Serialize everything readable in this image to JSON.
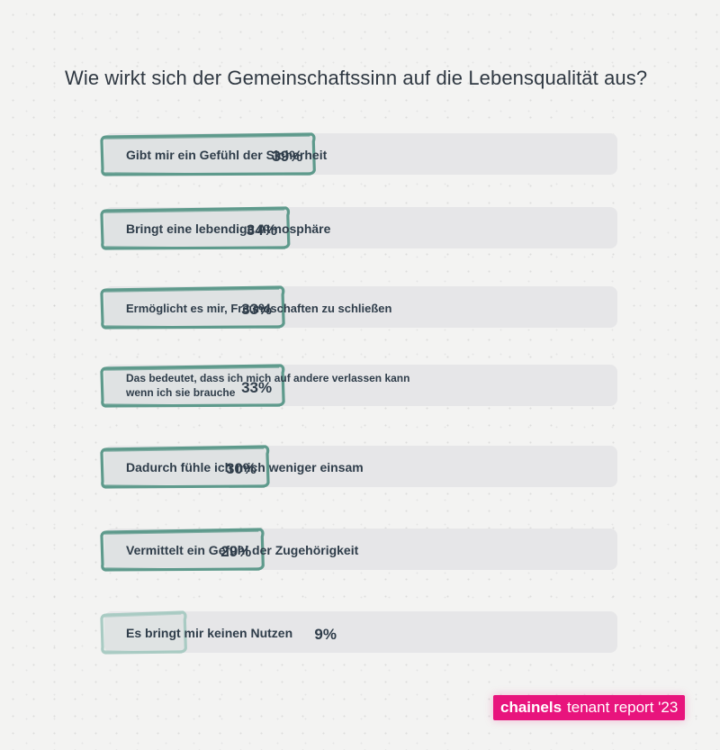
{
  "title": "Wie wirkt sich der Gemeinschaftssinn auf die Lebensqualität aus?",
  "brand": {
    "name": "chainels",
    "tagline": "tenant report '23",
    "color": "#e8147d"
  },
  "colors": {
    "track": "#e6e6e8",
    "outline": "#5e9a8c",
    "outline_light": "#a9cbc3",
    "text": "#2f3d4a"
  },
  "chart_data": {
    "type": "bar",
    "orientation": "horizontal",
    "title": "Wie wirkt sich der Gemeinschaftssinn auf die Lebensqualität aus?",
    "unit": "%",
    "xlim": [
      0,
      100
    ],
    "categories": [
      [
        "Gibt mir ein Gefühl der Sicherheit"
      ],
      [
        "Bringt eine lebendige Atmosphäre"
      ],
      [
        "Ermöglicht es mir, Freundschaften zu schließen"
      ],
      [
        "Das bedeutet, dass ich mich auf andere verlassen kann",
        "wenn ich sie brauche"
      ],
      [
        "Dadurch fühle ich mich weniger einsam"
      ],
      [
        "Vermittelt ein Gefühl der Zugehörigkeit"
      ],
      [
        "Es bringt mir keinen Nutzen"
      ]
    ],
    "values": [
      39,
      34,
      33,
      33,
      30,
      29,
      9
    ],
    "value_labels": [
      "39%",
      "34%",
      "33%",
      "33%",
      "30%",
      "29%",
      "9%"
    ]
  }
}
